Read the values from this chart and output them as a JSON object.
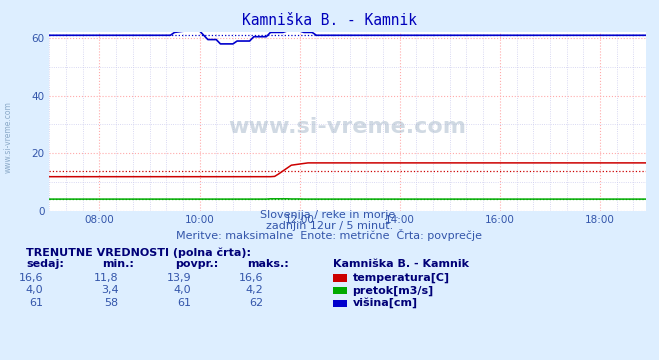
{
  "title": "Kamniška B. - Kamnik",
  "bg_color": "#ddeeff",
  "plot_bg_color": "#ffffff",
  "xlim": [
    0,
    143
  ],
  "ylim": [
    0,
    62
  ],
  "yticks": [
    0,
    20,
    40,
    60
  ],
  "xtick_labels": [
    "08:00",
    "10:00",
    "12:00",
    "14:00",
    "16:00",
    "18:00"
  ],
  "xtick_positions": [
    12,
    36,
    60,
    84,
    108,
    132
  ],
  "grid_color_major": "#ffaaaa",
  "grid_color_minor": "#ccccee",
  "subtitle1": "Slovenija / reke in morje.",
  "subtitle2": "zadnjih 12ur / 5 minut.",
  "subtitle3": "Meritve: maksimalne  Enote: metrične  Črta: povprečje",
  "watermark": "www.si-vreme.com",
  "table_header": "TRENUTNE VREDNOSTI (polna črta):",
  "col_headers": [
    "sedaj:",
    "min.:",
    "povpr.:",
    "maks.:"
  ],
  "row1": [
    "16,6",
    "11,8",
    "13,9",
    "16,6"
  ],
  "row2": [
    "4,0",
    "3,4",
    "4,0",
    "4,2"
  ],
  "row3": [
    "61",
    "58",
    "61",
    "62"
  ],
  "legend_labels": [
    "temperatura[C]",
    "pretok[m3/s]",
    "višina[cm]"
  ],
  "legend_colors": [
    "#cc0000",
    "#00aa00",
    "#0000cc"
  ],
  "station_label": "Kamniška B. - Kamnik",
  "temp_avg": 13.9,
  "flow_avg": 4.0,
  "height_avg": 61.0
}
